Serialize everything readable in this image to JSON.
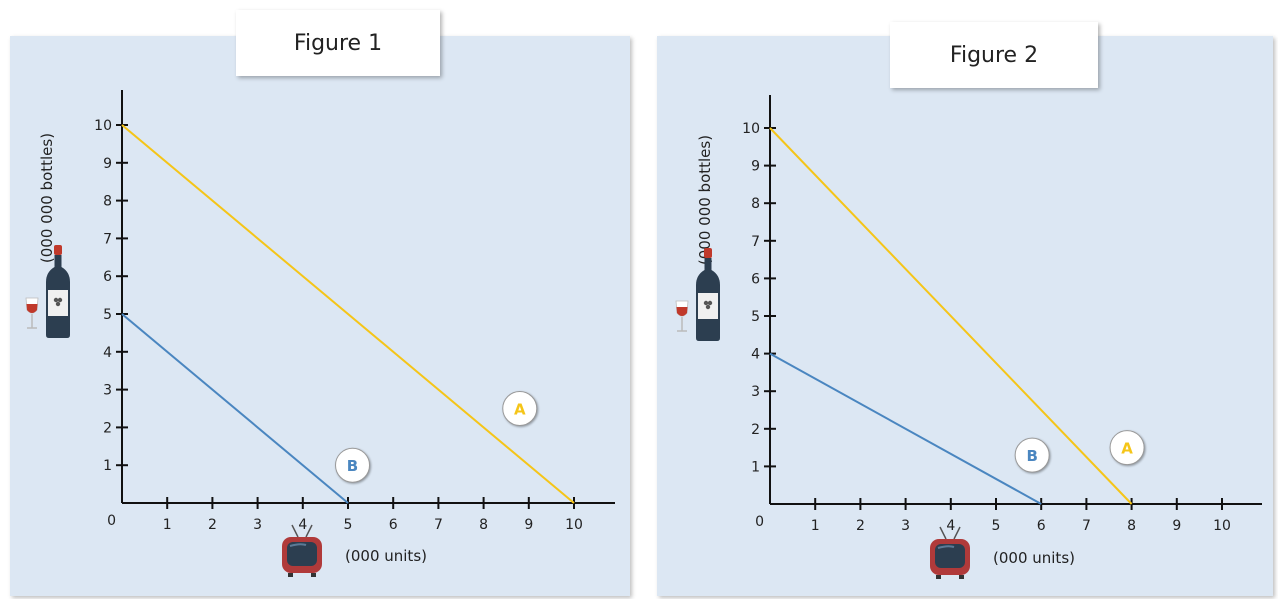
{
  "chart_data": [
    {
      "type": "line",
      "title": "Figure 1",
      "xlabel": "(000 units)",
      "ylabel": "(000 000 bottles)",
      "x_ticks": [
        1,
        2,
        3,
        4,
        5,
        6,
        7,
        8,
        9,
        10
      ],
      "y_ticks": [
        1,
        2,
        3,
        4,
        5,
        6,
        7,
        8,
        9,
        10
      ],
      "origin_label": "0",
      "xlim": [
        0,
        10.5
      ],
      "ylim": [
        0,
        11
      ],
      "series": [
        {
          "name": "A",
          "color": "#f5c518",
          "x": [
            0,
            10
          ],
          "y": [
            10,
            0
          ],
          "label_pos": [
            8.8,
            2.5
          ]
        },
        {
          "name": "B",
          "color": "#4a86c0",
          "x": [
            0,
            5
          ],
          "y": [
            5,
            0
          ],
          "label_pos": [
            5.1,
            1.0
          ]
        }
      ],
      "x_icon": "tv-icon",
      "y_icon": "wine-bottle-icon"
    },
    {
      "type": "line",
      "title": "Figure 2",
      "xlabel": "(000 units)",
      "ylabel": "(000 000 bottles)",
      "x_ticks": [
        1,
        2,
        3,
        4,
        5,
        6,
        7,
        8,
        9,
        10
      ],
      "y_ticks": [
        1,
        2,
        3,
        4,
        5,
        6,
        7,
        8,
        9,
        10
      ],
      "origin_label": "0",
      "xlim": [
        0,
        10.5
      ],
      "ylim": [
        0,
        11
      ],
      "series": [
        {
          "name": "A",
          "color": "#f5c518",
          "x": [
            0,
            8
          ],
          "y": [
            10,
            0
          ],
          "label_pos": [
            7.9,
            1.5
          ]
        },
        {
          "name": "B",
          "color": "#4a86c0",
          "x": [
            0,
            6
          ],
          "y": [
            4,
            0
          ],
          "label_pos": [
            5.8,
            1.3
          ]
        }
      ],
      "x_icon": "tv-icon",
      "y_icon": "wine-bottle-icon"
    }
  ]
}
